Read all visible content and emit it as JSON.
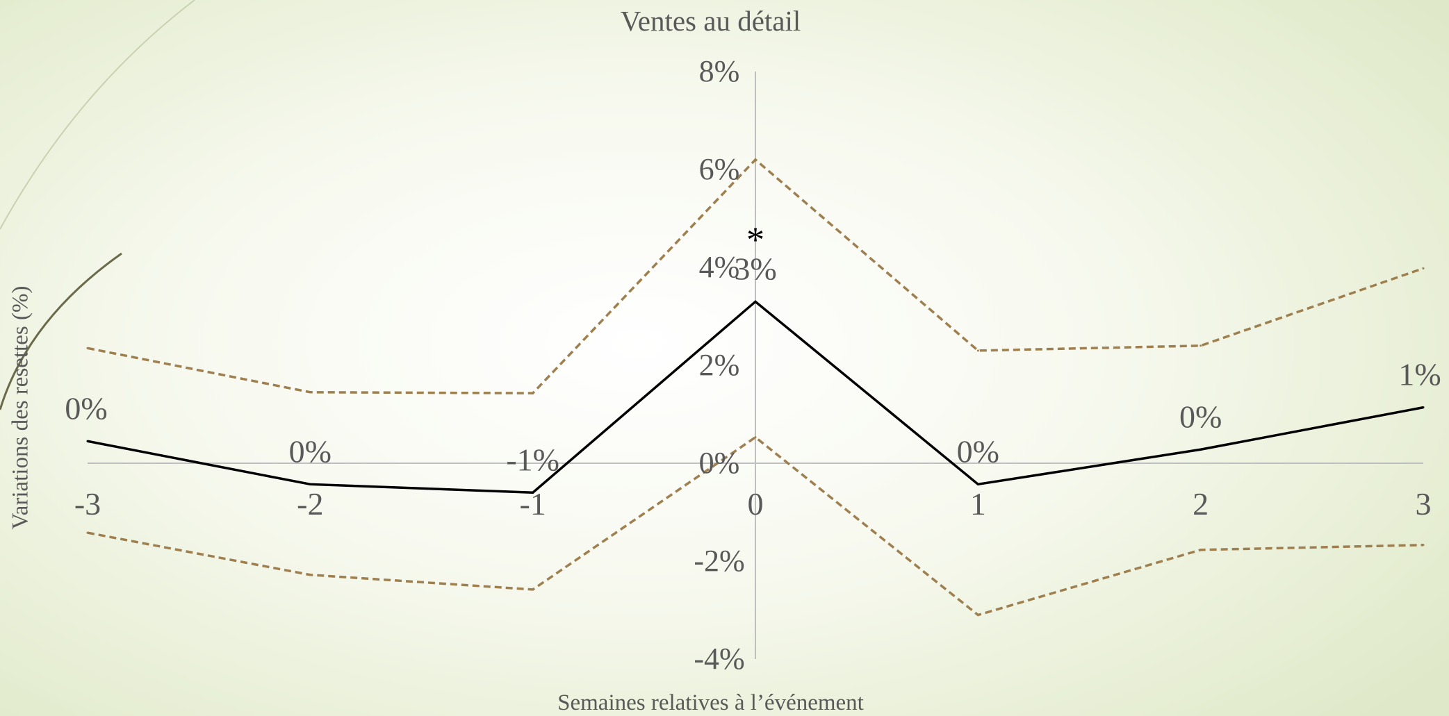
{
  "colors": {
    "main_line": "#000000",
    "ci_line": "#9e7f4f",
    "axis": "#bfbfbf",
    "text": "#595959",
    "decor": "#8f9a6e"
  },
  "chart_data": {
    "type": "line",
    "title": "Ventes au détail",
    "xlabel": "Semaines relatives à l’événement",
    "ylabel": "Variations des resettes (%)",
    "x": [
      -3,
      -2,
      -1,
      0,
      1,
      2,
      3
    ],
    "x_tick_labels": [
      "-3",
      "-2",
      "-1",
      "0",
      "1",
      "2",
      "3"
    ],
    "ylim": [
      -4,
      8
    ],
    "y_ticks": [
      -4,
      -2,
      0,
      2,
      4,
      6,
      8
    ],
    "y_tick_labels": [
      "-4%",
      "-2%",
      "0%",
      "2%",
      "4%",
      "6%",
      "8%"
    ],
    "grid": false,
    "series": [
      {
        "role": "estimate",
        "style": "solid",
        "values": [
          0.45,
          -0.43,
          -0.6,
          3.3,
          -0.43,
          0.28,
          1.14
        ],
        "data_labels": [
          "0%",
          "0%",
          "-1%",
          "3%",
          "0%",
          "0%",
          "1%"
        ]
      },
      {
        "role": "upper-ci",
        "style": "dashed",
        "values": [
          2.35,
          1.45,
          1.43,
          6.2,
          2.3,
          2.4,
          3.98
        ]
      },
      {
        "role": "lower-ci",
        "style": "dashed",
        "values": [
          -1.42,
          -2.28,
          -2.58,
          0.53,
          -3.1,
          -1.77,
          -1.67
        ]
      }
    ],
    "annotations": [
      {
        "x": 0,
        "text": "*"
      }
    ]
  }
}
